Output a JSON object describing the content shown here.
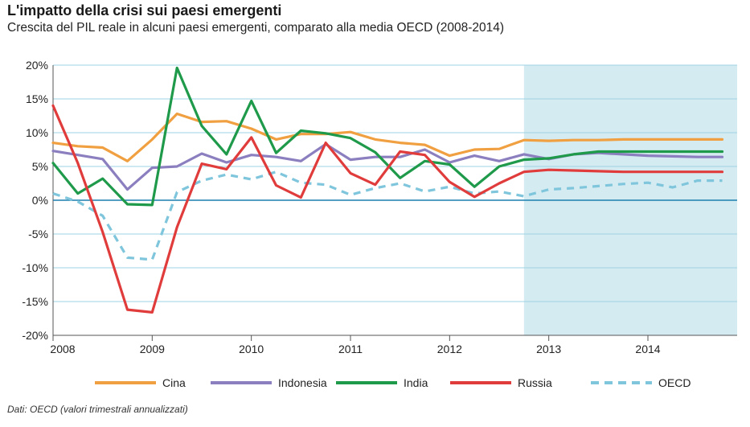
{
  "chart_data": {
    "type": "line",
    "title": "L'impatto della crisi sui paesi emergenti",
    "subtitle": "Crescita del PIL reale in alcuni paesi emergenti, comparato alla media OECD (2008-2014)",
    "source": "Dati: OECD (valori trimestrali annualizzati)",
    "xlabel": "",
    "ylabel": "",
    "xlim": [
      2008.0,
      2014.9
    ],
    "ylim": [
      -20,
      20
    ],
    "x_ticks": [
      2008,
      2009,
      2010,
      2011,
      2012,
      2013,
      2014
    ],
    "x_tick_labels": [
      "2008",
      "2009",
      "2010",
      "2011",
      "2012",
      "2013",
      "2014"
    ],
    "y_ticks": [
      20,
      15,
      10,
      5,
      0,
      -5,
      -10,
      -15,
      -20
    ],
    "y_tick_labels": [
      "20%",
      "15%",
      "10%",
      "5%",
      "0%",
      "-5%",
      "-10%",
      "-15%",
      "-20%"
    ],
    "grid": true,
    "legend_position": "bottom",
    "forecast_start": 2012.75,
    "forecast_end": 2014.9,
    "colors": {
      "Cina": "#f0a040",
      "Indonesia": "#8c7fbf",
      "India": "#1f9a4a",
      "Russia": "#e03c3c",
      "OECD": "#7fc6dc",
      "forecast_band": "#d5ebf2",
      "grid": "#9ed3e4"
    },
    "x": [
      2008.0,
      2008.25,
      2008.5,
      2008.75,
      2009.0,
      2009.25,
      2009.5,
      2009.75,
      2010.0,
      2010.25,
      2010.5,
      2010.75,
      2011.0,
      2011.25,
      2011.5,
      2011.75,
      2012.0,
      2012.25,
      2012.5,
      2012.75,
      2013.0,
      2013.25,
      2013.5,
      2013.75,
      2014.0,
      2014.25,
      2014.5,
      2014.75
    ],
    "series": [
      {
        "name": "Cina",
        "style": "solid",
        "values": [
          8.5,
          8.0,
          7.8,
          5.8,
          9.0,
          12.8,
          11.6,
          11.7,
          10.6,
          9.0,
          9.8,
          9.8,
          10.1,
          9.0,
          8.5,
          8.2,
          6.6,
          7.5,
          7.6,
          8.9,
          8.8,
          8.9,
          8.9,
          9.0,
          9.0,
          9.0,
          9.0,
          9.0
        ]
      },
      {
        "name": "Indonesia",
        "style": "solid",
        "values": [
          7.3,
          6.7,
          6.1,
          1.6,
          4.8,
          5.0,
          6.9,
          5.6,
          6.7,
          6.4,
          5.8,
          8.3,
          6.0,
          6.4,
          6.4,
          7.5,
          5.6,
          6.6,
          5.8,
          6.8,
          6.1,
          6.8,
          7.0,
          6.8,
          6.6,
          6.5,
          6.4,
          6.4
        ]
      },
      {
        "name": "India",
        "style": "solid",
        "values": [
          5.5,
          1.0,
          3.2,
          -0.6,
          -0.7,
          19.6,
          11.0,
          6.8,
          14.7,
          7.0,
          10.3,
          9.9,
          9.2,
          7.1,
          3.3,
          5.8,
          5.3,
          2.0,
          5.0,
          6.0,
          6.2,
          6.8,
          7.2,
          7.2,
          7.2,
          7.2,
          7.2,
          7.2
        ]
      },
      {
        "name": "Russia",
        "style": "solid",
        "values": [
          14.0,
          5.5,
          -4.7,
          -16.2,
          -16.6,
          -4.0,
          5.4,
          4.6,
          9.3,
          2.2,
          0.4,
          8.5,
          4.0,
          2.3,
          7.2,
          6.7,
          2.7,
          0.5,
          2.5,
          4.2,
          4.5,
          4.4,
          4.3,
          4.2,
          4.2,
          4.2,
          4.2,
          4.2
        ]
      },
      {
        "name": "OECD",
        "style": "dashed",
        "values": [
          1.0,
          -0.2,
          -2.3,
          -8.5,
          -8.8,
          1.2,
          2.9,
          3.8,
          3.1,
          4.2,
          2.6,
          2.3,
          0.8,
          1.8,
          2.5,
          1.3,
          2.0,
          1.0,
          1.3,
          0.6,
          1.6,
          1.8,
          2.1,
          2.4,
          2.6,
          1.9,
          2.9,
          2.9
        ]
      }
    ]
  }
}
